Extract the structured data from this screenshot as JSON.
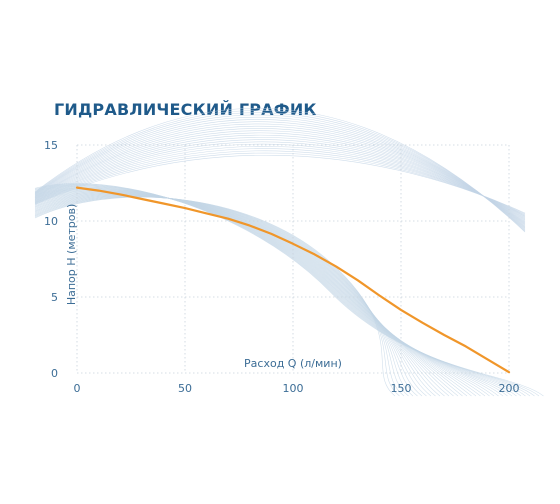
{
  "title": "ГИДРАВЛИЧЕСКИЙ ГРАФИК",
  "colors": {
    "title": "#1f5a8a",
    "axis_text": "#3c6d96",
    "curve": "#f0962a",
    "grid": "#c9d3dc",
    "background_lines": "#c3d5e6"
  },
  "chart_data": {
    "type": "line",
    "title": "ГИДРАВЛИЧЕСКИЙ ГРАФИК",
    "xlabel": "Расход Q (л/мин)",
    "ylabel": "Напор Н (метров)",
    "xlim": [
      0,
      200
    ],
    "ylim": [
      0,
      15
    ],
    "xticks": [
      0,
      50,
      100,
      150,
      200
    ],
    "yticks": [
      0,
      5,
      10,
      15
    ],
    "grid": true,
    "series": [
      {
        "x": [
          0,
          10,
          20,
          30,
          40,
          50,
          60,
          70,
          80,
          90,
          100,
          110,
          120,
          130,
          140,
          150,
          160,
          170,
          180,
          190,
          200
        ],
        "y": [
          12.2,
          12.0,
          11.75,
          11.45,
          11.15,
          10.85,
          10.5,
          10.15,
          9.7,
          9.15,
          8.5,
          7.8,
          7.0,
          6.1,
          5.1,
          4.15,
          3.3,
          2.5,
          1.75,
          0.9,
          0.05
        ]
      }
    ]
  }
}
